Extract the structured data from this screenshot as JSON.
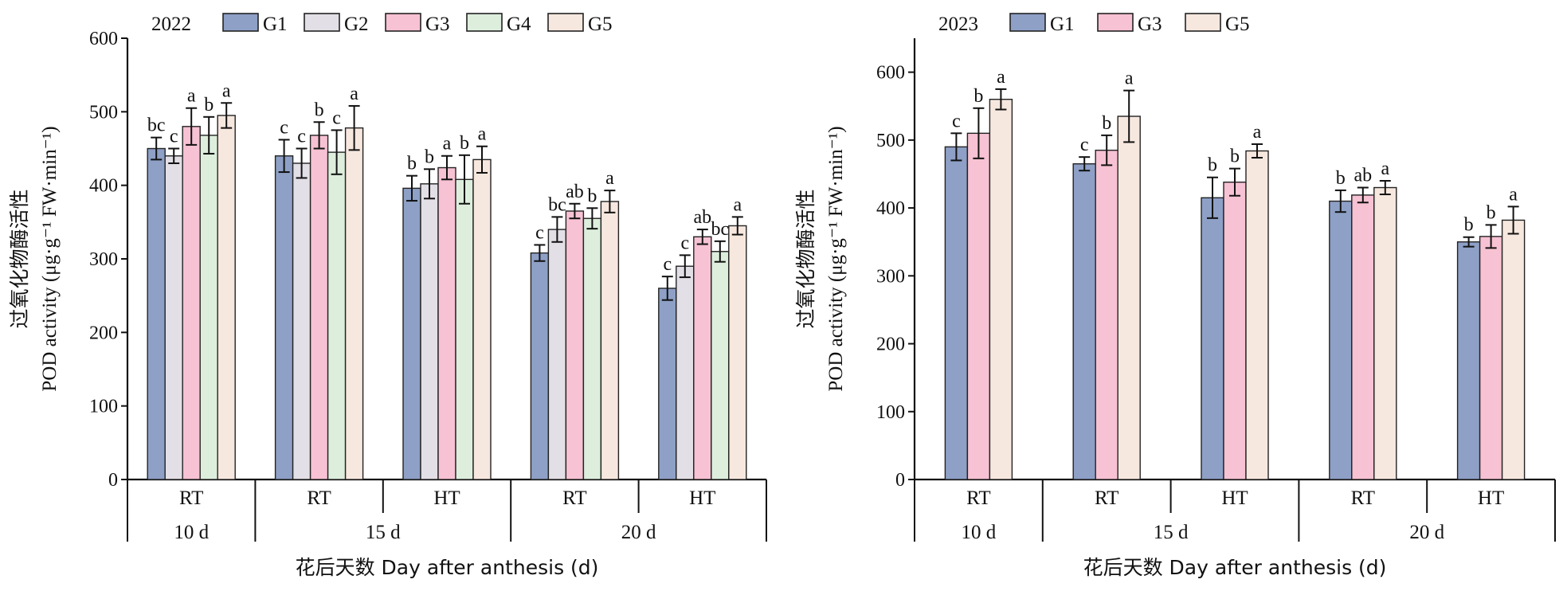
{
  "chart_data": [
    {
      "type": "bar",
      "year_label": "2022",
      "xlabel": "花后天数 Day after anthesis (d)",
      "ylabel_cn": "过氧化物酶活性",
      "ylabel_en": "POD activity (μg·g⁻¹ FW·min⁻¹)",
      "ylim": [
        0,
        600
      ],
      "yticks": [
        0,
        100,
        200,
        300,
        400,
        500,
        600
      ],
      "legend": [
        {
          "name": "G1",
          "color": "#8EA0C6"
        },
        {
          "name": "G2",
          "color": "#E3DFE6"
        },
        {
          "name": "G3",
          "color": "#F7C2D3"
        },
        {
          "name": "G4",
          "color": "#DDEEDD"
        },
        {
          "name": "G5",
          "color": "#F7E8DF"
        }
      ],
      "groups": [
        {
          "day": "10 d",
          "treatment": "RT",
          "bars": [
            {
              "g": "G1",
              "value": 450,
              "err": 15,
              "letter": "bc"
            },
            {
              "g": "G2",
              "value": 440,
              "err": 10,
              "letter": "c"
            },
            {
              "g": "G3",
              "value": 480,
              "err": 25,
              "letter": "a"
            },
            {
              "g": "G4",
              "value": 468,
              "err": 25,
              "letter": "b"
            },
            {
              "g": "G5",
              "value": 495,
              "err": 17,
              "letter": "a"
            }
          ]
        },
        {
          "day": "15 d",
          "treatment": "RT",
          "bars": [
            {
              "g": "G1",
              "value": 440,
              "err": 22,
              "letter": "c"
            },
            {
              "g": "G2",
              "value": 430,
              "err": 20,
              "letter": "c"
            },
            {
              "g": "G3",
              "value": 468,
              "err": 18,
              "letter": "b"
            },
            {
              "g": "G4",
              "value": 445,
              "err": 30,
              "letter": "c"
            },
            {
              "g": "G5",
              "value": 478,
              "err": 30,
              "letter": "a"
            }
          ]
        },
        {
          "day": "15 d",
          "treatment": "HT",
          "bars": [
            {
              "g": "G1",
              "value": 396,
              "err": 17,
              "letter": "b"
            },
            {
              "g": "G2",
              "value": 402,
              "err": 20,
              "letter": "b"
            },
            {
              "g": "G3",
              "value": 424,
              "err": 16,
              "letter": "a"
            },
            {
              "g": "G4",
              "value": 408,
              "err": 33,
              "letter": "b"
            },
            {
              "g": "G5",
              "value": 435,
              "err": 18,
              "letter": "a"
            }
          ]
        },
        {
          "day": "20 d",
          "treatment": "RT",
          "bars": [
            {
              "g": "G1",
              "value": 308,
              "err": 11,
              "letter": "c"
            },
            {
              "g": "G2",
              "value": 340,
              "err": 17,
              "letter": "bc"
            },
            {
              "g": "G3",
              "value": 365,
              "err": 10,
              "letter": "ab"
            },
            {
              "g": "G4",
              "value": 355,
              "err": 14,
              "letter": "b"
            },
            {
              "g": "G5",
              "value": 378,
              "err": 15,
              "letter": "a"
            }
          ]
        },
        {
          "day": "20 d",
          "treatment": "HT",
          "bars": [
            {
              "g": "G1",
              "value": 260,
              "err": 16,
              "letter": "c"
            },
            {
              "g": "G2",
              "value": 290,
              "err": 15,
              "letter": "c"
            },
            {
              "g": "G3",
              "value": 330,
              "err": 10,
              "letter": "ab"
            },
            {
              "g": "G4",
              "value": 310,
              "err": 14,
              "letter": "bc"
            },
            {
              "g": "G5",
              "value": 345,
              "err": 12,
              "letter": "a"
            }
          ]
        }
      ]
    },
    {
      "type": "bar",
      "year_label": "2023",
      "xlabel": "花后天数 Day after anthesis (d)",
      "ylabel_cn": "过氧化物酶活性",
      "ylabel_en": "POD activity (μg·g⁻¹ FW·min⁻¹)",
      "ylim": [
        0,
        650
      ],
      "yticks": [
        0,
        100,
        200,
        300,
        400,
        500,
        600
      ],
      "legend": [
        {
          "name": "G1",
          "color": "#8EA0C6"
        },
        {
          "name": "G3",
          "color": "#F7C2D3"
        },
        {
          "name": "G5",
          "color": "#F7E8DF"
        }
      ],
      "groups": [
        {
          "day": "10 d",
          "treatment": "RT",
          "bars": [
            {
              "g": "G1",
              "value": 490,
              "err": 20,
              "letter": "c"
            },
            {
              "g": "G3",
              "value": 510,
              "err": 37,
              "letter": "b"
            },
            {
              "g": "G5",
              "value": 560,
              "err": 15,
              "letter": "a"
            }
          ]
        },
        {
          "day": "15 d",
          "treatment": "RT",
          "bars": [
            {
              "g": "G1",
              "value": 465,
              "err": 10,
              "letter": "c"
            },
            {
              "g": "G3",
              "value": 485,
              "err": 22,
              "letter": "b"
            },
            {
              "g": "G5",
              "value": 535,
              "err": 38,
              "letter": "a"
            }
          ]
        },
        {
          "day": "15 d",
          "treatment": "HT",
          "bars": [
            {
              "g": "G1",
              "value": 415,
              "err": 30,
              "letter": "b"
            },
            {
              "g": "G3",
              "value": 438,
              "err": 20,
              "letter": "b"
            },
            {
              "g": "G5",
              "value": 484,
              "err": 10,
              "letter": "a"
            }
          ]
        },
        {
          "day": "20 d",
          "treatment": "RT",
          "bars": [
            {
              "g": "G1",
              "value": 410,
              "err": 16,
              "letter": "b"
            },
            {
              "g": "G3",
              "value": 419,
              "err": 11,
              "letter": "ab"
            },
            {
              "g": "G5",
              "value": 430,
              "err": 10,
              "letter": "a"
            }
          ]
        },
        {
          "day": "20 d",
          "treatment": "HT",
          "bars": [
            {
              "g": "G1",
              "value": 350,
              "err": 7,
              "letter": "b"
            },
            {
              "g": "G3",
              "value": 358,
              "err": 17,
              "letter": "b"
            },
            {
              "g": "G5",
              "value": 382,
              "err": 20,
              "letter": "a"
            }
          ]
        }
      ]
    }
  ]
}
